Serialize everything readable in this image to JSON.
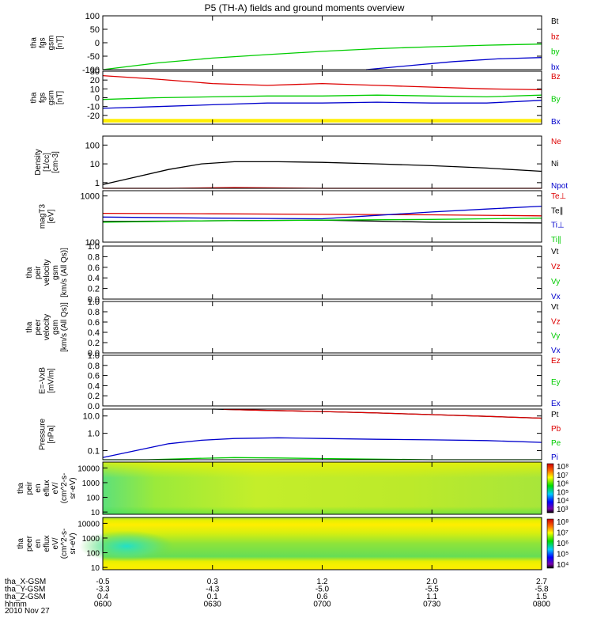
{
  "title": "P5 (TH-A) fields and ground moments overview",
  "time_axis": {
    "start_hours": 6.0,
    "end_hours": 8.0,
    "date": "2010 Nov 27",
    "ticks": [
      "0600",
      "0630",
      "0700",
      "0730",
      "0800"
    ]
  },
  "ephemeris": {
    "rows": [
      {
        "label": "tha_X-GSM",
        "values": [
          "-0.5",
          "0.3",
          "1.2",
          "2.0",
          "2.7"
        ]
      },
      {
        "label": "tha_Y-GSM",
        "values": [
          "-3.3",
          "-4.3",
          "-5.0",
          "-5.5",
          "-5.8"
        ]
      },
      {
        "label": "tha_Z-GSM",
        "values": [
          "0.4",
          "0.1",
          "0.6",
          "1.1",
          "1.5"
        ]
      },
      {
        "label": "hhmm",
        "values": [
          "0600",
          "0630",
          "0700",
          "0730",
          "0800"
        ]
      }
    ]
  },
  "chart_data": [
    {
      "type": "line",
      "ylabel": [
        "tha",
        "fgs",
        "gsm",
        "[nT]"
      ],
      "ylim": [
        -100,
        100
      ],
      "yticks": [
        "100",
        "50",
        "0",
        "-50",
        "-100"
      ],
      "legend": [
        {
          "label": "Bt",
          "color": "#000000"
        },
        {
          "label": "bz",
          "color": "#dd0000"
        },
        {
          "label": "by",
          "color": "#00cc00"
        },
        {
          "label": "bx",
          "color": "#0000cc"
        }
      ],
      "series": [
        {
          "color": "#00cc00",
          "x": [
            6.0,
            6.25,
            6.5,
            6.75,
            7.0,
            7.25,
            7.5,
            7.75,
            8.0
          ],
          "y": [
            -100,
            -75,
            -57,
            -44,
            -32,
            -22,
            -15,
            -9,
            -5
          ]
        },
        {
          "color": "#0000cc",
          "x": [
            7.2,
            7.4,
            7.6,
            7.8,
            8.0
          ],
          "y": [
            -100,
            -85,
            -70,
            -60,
            -55
          ]
        }
      ]
    },
    {
      "type": "line",
      "ylabel": [
        "tha",
        "fgs",
        "gsm",
        "[nT]"
      ],
      "ylim": [
        -30,
        30
      ],
      "yticks": [
        "30",
        "20",
        "10",
        "0",
        "-10",
        "-20"
      ],
      "legend": [
        {
          "label": "Bz",
          "color": "#dd0000"
        },
        {
          "label": "By",
          "color": "#00cc00"
        },
        {
          "label": "Bx",
          "color": "#0000cc"
        }
      ],
      "series": [
        {
          "color": "#dd0000",
          "x": [
            6.0,
            6.25,
            6.5,
            6.75,
            7.0,
            7.25,
            7.5,
            7.75,
            8.0
          ],
          "y": [
            25,
            21,
            16,
            14,
            16,
            14,
            12,
            10,
            9
          ]
        },
        {
          "color": "#00cc00",
          "x": [
            6.0,
            6.25,
            6.5,
            6.75,
            7.0,
            7.25,
            7.5,
            7.75,
            8.0
          ],
          "y": [
            -2,
            0,
            1,
            2,
            2,
            3,
            2,
            1,
            3
          ]
        },
        {
          "color": "#0000cc",
          "x": [
            6.0,
            6.25,
            6.5,
            6.75,
            7.0,
            7.25,
            7.5,
            7.75,
            8.0
          ],
          "y": [
            -12,
            -10,
            -8,
            -6,
            -6,
            -5,
            -6,
            -6,
            -3
          ]
        }
      ],
      "band": {
        "color": "#ffee00",
        "y": [
          -28,
          -24
        ]
      }
    },
    {
      "type": "line",
      "log": true,
      "ylabel": [
        "Density",
        "[1/cc]",
        "[cm-3]"
      ],
      "ylim": [
        0.5,
        300
      ],
      "yticks": [
        {
          "v": 100,
          "label": "100"
        },
        {
          "v": 10,
          "label": "10"
        },
        {
          "v": 1,
          "label": "1"
        }
      ],
      "legend": [
        {
          "label": "Ne",
          "color": "#dd0000"
        },
        {
          "label": "Ni",
          "color": "#000000"
        },
        {
          "label": "Npot",
          "color": "#0000cc"
        }
      ],
      "series": [
        {
          "color": "#000000",
          "x": [
            6.0,
            6.15,
            6.3,
            6.45,
            6.6,
            6.8,
            7.0,
            7.25,
            7.5,
            7.75,
            8.0
          ],
          "y": [
            0.8,
            2,
            5,
            10,
            13,
            13,
            12,
            10,
            8,
            6,
            4
          ]
        },
        {
          "color": "#dd0000",
          "x": [
            6.0,
            6.3,
            6.6,
            7.0,
            7.5,
            8.0
          ],
          "y": [
            0.5,
            0.5,
            0.55,
            0.5,
            0.5,
            0.5
          ]
        }
      ]
    },
    {
      "type": "line",
      "log": true,
      "ylabel": [
        "magT3",
        "[eV]"
      ],
      "ylim": [
        100,
        1300
      ],
      "yticks": [
        {
          "v": 1000,
          "label": "1000"
        },
        {
          "v": 100,
          "label": "100"
        }
      ],
      "legend": [
        {
          "label": "Te⊥",
          "color": "#dd0000"
        },
        {
          "label": "Te∥",
          "color": "#000000"
        },
        {
          "label": "Ti⊥",
          "color": "#0000cc"
        },
        {
          "label": "Ti∥",
          "color": "#00cc00"
        }
      ],
      "series": [
        {
          "color": "#dd0000",
          "x": [
            6.0,
            6.5,
            7.0,
            7.5,
            8.0
          ],
          "y": [
            420,
            410,
            400,
            390,
            370
          ]
        },
        {
          "color": "#000000",
          "x": [
            6.0,
            6.5,
            7.0,
            7.5,
            8.0
          ],
          "y": [
            280,
            290,
            300,
            270,
            260
          ]
        },
        {
          "color": "#0000cc",
          "x": [
            6.0,
            6.5,
            7.0,
            7.25,
            7.5,
            7.75,
            8.0
          ],
          "y": [
            350,
            330,
            320,
            380,
            450,
            520,
            600
          ]
        },
        {
          "color": "#00cc00",
          "x": [
            6.0,
            6.5,
            7.0,
            7.5,
            8.0
          ],
          "y": [
            270,
            290,
            300,
            310,
            330
          ]
        }
      ]
    },
    {
      "type": "line",
      "ylabel": [
        "tha",
        "peir",
        "velocity",
        "gsm",
        "[km/s (All Qs)]"
      ],
      "ylim": [
        0,
        1
      ],
      "yticks": [
        "1.0",
        "0.8",
        "0.6",
        "0.4",
        "0.2",
        "0.0"
      ],
      "legend": [
        {
          "label": "Vt",
          "color": "#000000"
        },
        {
          "label": "Vz",
          "color": "#dd0000"
        },
        {
          "label": "Vy",
          "color": "#00cc00"
        },
        {
          "label": "Vx",
          "color": "#0000cc"
        }
      ],
      "series": []
    },
    {
      "type": "line",
      "ylabel": [
        "tha",
        "peer",
        "velocity",
        "gsm",
        "[km/s (All Qs)]"
      ],
      "ylim": [
        0,
        1
      ],
      "yticks": [
        "1.0",
        "0.8",
        "0.6",
        "0.4",
        "0.2",
        "0.0"
      ],
      "legend": [
        {
          "label": "Vt",
          "color": "#000000"
        },
        {
          "label": "Vz",
          "color": "#dd0000"
        },
        {
          "label": "Vy",
          "color": "#00cc00"
        },
        {
          "label": "Vx",
          "color": "#0000cc"
        }
      ],
      "series": []
    },
    {
      "type": "line",
      "ylabel": [
        "E=-VxB",
        "[mV/m]"
      ],
      "ylim": [
        0,
        1
      ],
      "yticks": [
        "1.0",
        "0.8",
        "0.6",
        "0.4",
        "0.2",
        "0.0"
      ],
      "legend": [
        {
          "label": "Ez",
          "color": "#dd0000"
        },
        {
          "label": "Ey",
          "color": "#00cc00"
        },
        {
          "label": "Ex",
          "color": "#0000cc"
        }
      ],
      "series": []
    },
    {
      "type": "line",
      "log": true,
      "ylabel": [
        "Pressure",
        "[nPa]"
      ],
      "ylim": [
        0.03,
        25
      ],
      "yticks": [
        {
          "v": 10,
          "label": "10.0"
        },
        {
          "v": 1,
          "label": "1.0"
        },
        {
          "v": 0.1,
          "label": "0.1"
        }
      ],
      "legend": [
        {
          "label": "Pt",
          "color": "#000000"
        },
        {
          "label": "Pb",
          "color": "#dd0000"
        },
        {
          "label": "Pe",
          "color": "#00cc00"
        },
        {
          "label": "Pi",
          "color": "#0000cc"
        }
      ],
      "series": [
        {
          "color": "#000000",
          "x": [
            6.5,
            6.75,
            7.0,
            7.25,
            7.5,
            7.75,
            8.0
          ],
          "y": [
            25,
            21,
            18,
            15,
            12,
            9.5,
            7.5
          ]
        },
        {
          "color": "#dd0000",
          "x": [
            6.55,
            6.75,
            7.0,
            7.25,
            7.5,
            7.75,
            8.0
          ],
          "y": [
            24,
            21,
            18,
            15,
            12,
            9.5,
            7.5
          ]
        },
        {
          "color": "#0000cc",
          "x": [
            6.0,
            6.15,
            6.3,
            6.45,
            6.6,
            6.8,
            7.0,
            7.25,
            7.5,
            7.75,
            8.0
          ],
          "y": [
            0.04,
            0.1,
            0.25,
            0.4,
            0.5,
            0.55,
            0.5,
            0.45,
            0.42,
            0.38,
            0.3
          ]
        },
        {
          "color": "#00cc00",
          "x": [
            6.0,
            6.2,
            6.4,
            6.6,
            6.8,
            7.0,
            7.5,
            8.0
          ],
          "y": [
            0.03,
            0.03,
            0.035,
            0.04,
            0.038,
            0.035,
            0.03,
            0.03
          ]
        }
      ]
    },
    {
      "type": "heatmap",
      "ylabel": [
        "tha",
        "peir",
        "en",
        "eflux",
        "eV/",
        "(cm^2-s-",
        "sr-eV)"
      ],
      "yticks": [
        {
          "v": 10000,
          "label": "10000"
        },
        {
          "v": 1000,
          "label": "1000"
        },
        {
          "v": 100,
          "label": "100"
        },
        {
          "v": 10,
          "label": "10"
        }
      ],
      "colorbar_labels": [
        "10⁸",
        "10⁷",
        "10⁶",
        "10⁵",
        "10⁴",
        "10³"
      ]
    },
    {
      "type": "heatmap",
      "ylabel": [
        "tha",
        "peer",
        "en",
        "eflux",
        "eV/",
        "(cm^2-s-",
        "sr-eV)"
      ],
      "yticks": [
        {
          "v": 10000,
          "label": "10000"
        },
        {
          "v": 1000,
          "label": "1000"
        },
        {
          "v": 100,
          "label": "100"
        },
        {
          "v": 10,
          "label": "10"
        }
      ],
      "colorbar_labels": [
        "10⁸",
        "10⁷",
        "10⁶",
        "10⁵",
        "10⁴"
      ]
    }
  ]
}
